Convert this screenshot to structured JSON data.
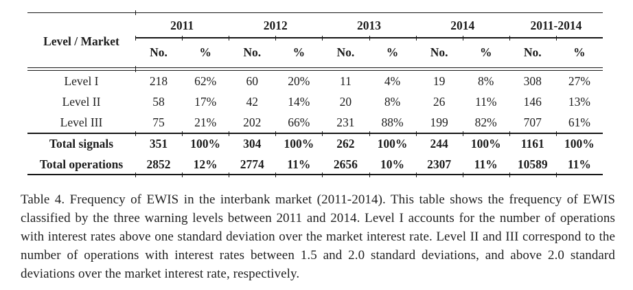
{
  "colors": {
    "text": "#1c1c1c",
    "rule": "#151515",
    "background": "#ffffff"
  },
  "table": {
    "corner_label": "Level / Market",
    "year_groups": [
      "2011",
      "2012",
      "2013",
      "2014",
      "2011-2014"
    ],
    "subheader": {
      "no": "No.",
      "pct": "%"
    },
    "rows": [
      {
        "label": "Level I",
        "bold": false,
        "values": [
          "218",
          "62%",
          "60",
          "20%",
          "11",
          "4%",
          "19",
          "8%",
          "308",
          "27%"
        ]
      },
      {
        "label": "Level II",
        "bold": false,
        "values": [
          "58",
          "17%",
          "42",
          "14%",
          "20",
          "8%",
          "26",
          "11%",
          "146",
          "13%"
        ]
      },
      {
        "label": "Level III",
        "bold": false,
        "values": [
          "75",
          "21%",
          "202",
          "66%",
          "231",
          "88%",
          "199",
          "82%",
          "707",
          "61%"
        ]
      },
      {
        "label": "Total signals",
        "bold": true,
        "values": [
          "351",
          "100%",
          "304",
          "100%",
          "262",
          "100%",
          "244",
          "100%",
          "1161",
          "100%"
        ]
      },
      {
        "label": "Total operations",
        "bold": true,
        "values": [
          "2852",
          "12%",
          "2774",
          "11%",
          "2656",
          "10%",
          "2307",
          "11%",
          "10589",
          "11%"
        ]
      }
    ]
  },
  "caption": {
    "text": "Table 4. Frequency of EWIS in the interbank market (2011-2014). This table shows the frequency of EWIS classified by the three warning levels between 2011 and 2014. Level I accounts for the number of operations with interest rates above one standard deviation over the market interest rate. Level II and III correspond to the number of operations with interest rates between 1.5 and 2.0 standard deviations, and above 2.0 standard deviations over the market interest rate, respectively."
  }
}
